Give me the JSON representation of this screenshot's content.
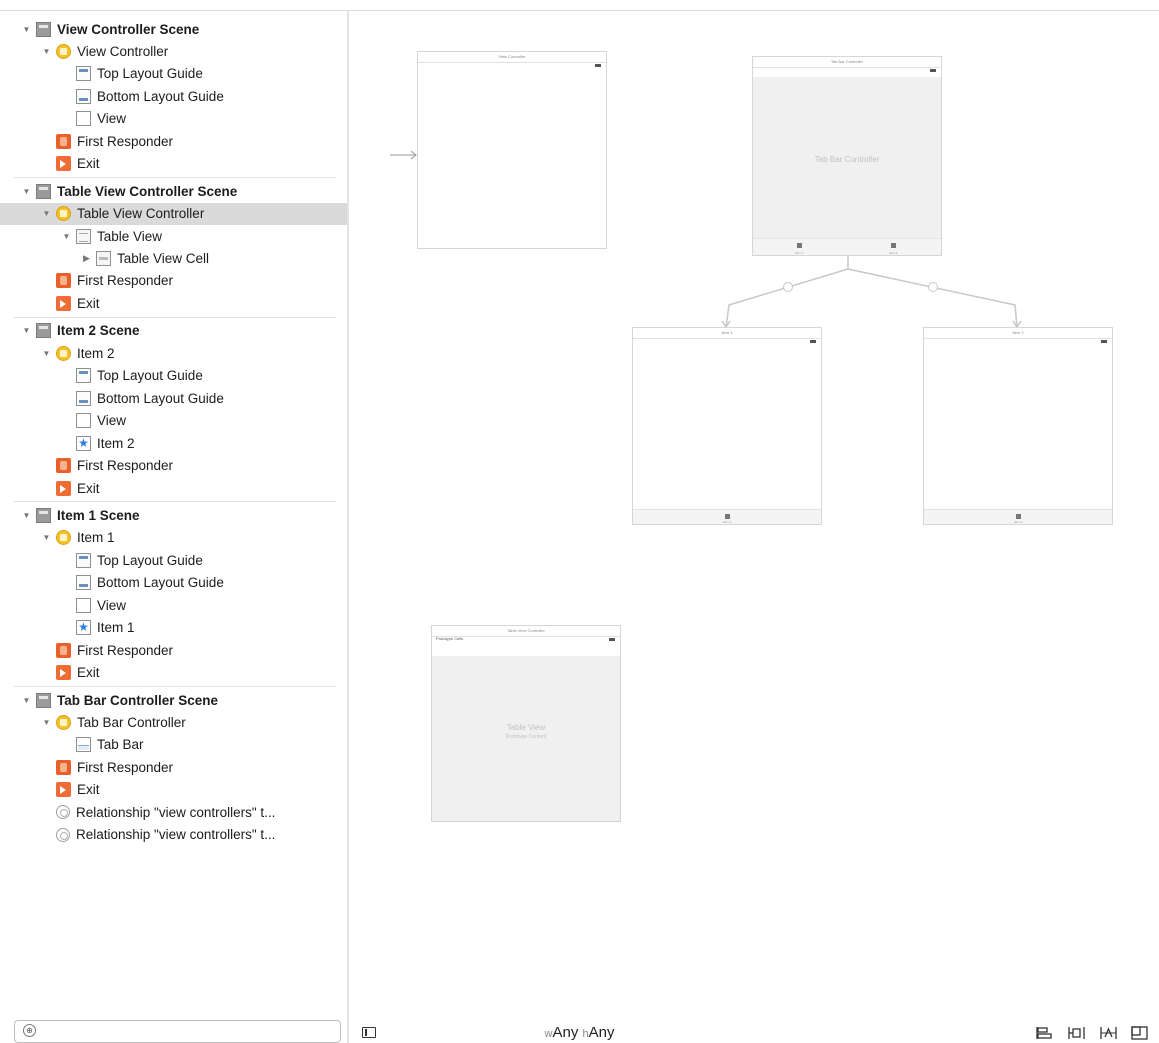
{
  "outline": {
    "items": [
      {
        "label": "View Controller Scene",
        "indent": 0,
        "icon": "scene",
        "expand": "open",
        "kind": "scene"
      },
      {
        "label": "View Controller",
        "indent": 1,
        "icon": "vc",
        "expand": "open"
      },
      {
        "label": "Top Layout Guide",
        "indent": 2,
        "icon": "guide"
      },
      {
        "label": "Bottom Layout Guide",
        "indent": 2,
        "icon": "guide-bottom"
      },
      {
        "label": "View",
        "indent": 2,
        "icon": "view"
      },
      {
        "label": "First Responder",
        "indent": 1,
        "icon": "fr"
      },
      {
        "label": "Exit",
        "indent": 1,
        "icon": "exit"
      },
      {
        "label": "Table View Controller Scene",
        "indent": 0,
        "icon": "scene",
        "expand": "open",
        "kind": "scene"
      },
      {
        "label": "Table View Controller",
        "indent": 1,
        "icon": "vc",
        "expand": "open",
        "selected": true
      },
      {
        "label": "Table View",
        "indent": 2,
        "icon": "table",
        "expand": "open"
      },
      {
        "label": "Table View Cell",
        "indent": 3,
        "icon": "cell",
        "expand": "closed"
      },
      {
        "label": "First Responder",
        "indent": 1,
        "icon": "fr"
      },
      {
        "label": "Exit",
        "indent": 1,
        "icon": "exit"
      },
      {
        "label": "Item 2 Scene",
        "indent": 0,
        "icon": "scene",
        "expand": "open",
        "kind": "scene"
      },
      {
        "label": "Item 2",
        "indent": 1,
        "icon": "vc",
        "expand": "open"
      },
      {
        "label": "Top Layout Guide",
        "indent": 2,
        "icon": "guide"
      },
      {
        "label": "Bottom Layout Guide",
        "indent": 2,
        "icon": "guide-bottom"
      },
      {
        "label": "View",
        "indent": 2,
        "icon": "view"
      },
      {
        "label": "Item 2",
        "indent": 2,
        "icon": "star"
      },
      {
        "label": "First Responder",
        "indent": 1,
        "icon": "fr"
      },
      {
        "label": "Exit",
        "indent": 1,
        "icon": "exit"
      },
      {
        "label": "Item 1 Scene",
        "indent": 0,
        "icon": "scene",
        "expand": "open",
        "kind": "scene"
      },
      {
        "label": "Item 1",
        "indent": 1,
        "icon": "vc",
        "expand": "open"
      },
      {
        "label": "Top Layout Guide",
        "indent": 2,
        "icon": "guide"
      },
      {
        "label": "Bottom Layout Guide",
        "indent": 2,
        "icon": "guide-bottom"
      },
      {
        "label": "View",
        "indent": 2,
        "icon": "view"
      },
      {
        "label": "Item 1",
        "indent": 2,
        "icon": "star"
      },
      {
        "label": "First Responder",
        "indent": 1,
        "icon": "fr"
      },
      {
        "label": "Exit",
        "indent": 1,
        "icon": "exit"
      },
      {
        "label": "Tab Bar Controller Scene",
        "indent": 0,
        "icon": "scene",
        "expand": "open",
        "kind": "scene"
      },
      {
        "label": "Tab Bar Controller",
        "indent": 1,
        "icon": "vc",
        "expand": "open"
      },
      {
        "label": "Tab Bar",
        "indent": 2,
        "icon": "tabbar"
      },
      {
        "label": "First Responder",
        "indent": 1,
        "icon": "fr"
      },
      {
        "label": "Exit",
        "indent": 1,
        "icon": "exit"
      },
      {
        "label": "Relationship \"view controllers\" t...",
        "indent": 1,
        "icon": "rel"
      },
      {
        "label": "Relationship \"view controllers\" t...",
        "indent": 1,
        "icon": "rel"
      }
    ],
    "filter_placeholder": ""
  },
  "canvas": {
    "view_controller": {
      "title": "View Controller"
    },
    "tab_bar_controller": {
      "title": "Tab Bar Controller",
      "center_label": "Tab Bar Controller",
      "tab1": "Item 1",
      "tab2": "Item 2"
    },
    "item1": {
      "title": "Item 1",
      "tab": "Item 1"
    },
    "item2": {
      "title": "Item 2",
      "tab": "Item 2"
    },
    "table_view_controller": {
      "title": "Table View Controller",
      "cells_label": "Prototype Cells",
      "center_label": "Table View",
      "center_sub": "Prototype Content"
    }
  },
  "bottom_bar": {
    "width_prefix": "w",
    "width_value": "Any",
    "height_prefix": "h",
    "height_value": "Any"
  }
}
